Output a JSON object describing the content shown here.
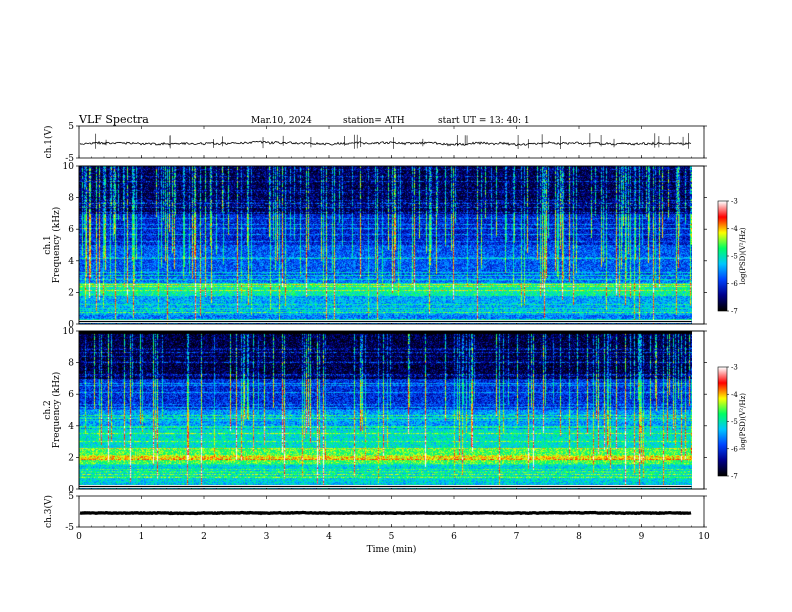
{
  "header": {
    "title": "VLF  Spectra",
    "date": "Mar.10, 2024",
    "station": "station= ATH",
    "start": "start  UT  =   13: 40: 1"
  },
  "chart_data": {
    "type": "heatmap",
    "panels": [
      {
        "id": "ch1-waveform",
        "kind": "line",
        "ylabel": "ch.1(V)",
        "ylim": [
          -5,
          5
        ],
        "yticks": [
          -5,
          5
        ],
        "trace_level_V": 0,
        "color": "#000000"
      },
      {
        "id": "ch1-spectrogram",
        "kind": "heatmap",
        "ylabel_line1": "ch.1",
        "ylabel_line2": "Frequency  (kHz)",
        "ylim": [
          0,
          10
        ],
        "yticks": [
          0,
          2,
          4,
          6,
          8,
          10
        ],
        "colorbar": {
          "label": "log(PSD)(V²/Hz)",
          "range": [
            -7,
            -3
          ],
          "ticks": [
            -7,
            -6,
            -5,
            -4,
            -3
          ]
        }
      },
      {
        "id": "ch2-spectrogram",
        "kind": "heatmap",
        "ylabel_line1": "ch.2",
        "ylabel_line2": "Frequency  (kHz)",
        "ylim": [
          0,
          10
        ],
        "yticks": [
          0,
          2,
          4,
          6,
          8,
          10
        ],
        "colorbar": {
          "label": "log(PSD)(V²/Hz)",
          "range": [
            -7,
            -3
          ],
          "ticks": [
            -7,
            -6,
            -5,
            -4,
            -3
          ]
        }
      },
      {
        "id": "ch3-waveform",
        "kind": "line",
        "ylabel": "ch.3(V)",
        "ylim": [
          -5,
          5
        ],
        "yticks": [
          -5,
          5
        ],
        "trace_level_V": 0,
        "color": "#000000"
      }
    ],
    "x": {
      "label": "Time  (min)",
      "range": [
        0,
        10
      ],
      "ticks": [
        0,
        1,
        2,
        3,
        4,
        5,
        6,
        7,
        8,
        9,
        10
      ],
      "data_end_min": 9.8
    },
    "colormap": [
      "#000000",
      "#00008c",
      "#0046ff",
      "#00c8ff",
      "#00ff64",
      "#ffff00",
      "#ff0000",
      "#ffffff"
    ]
  }
}
